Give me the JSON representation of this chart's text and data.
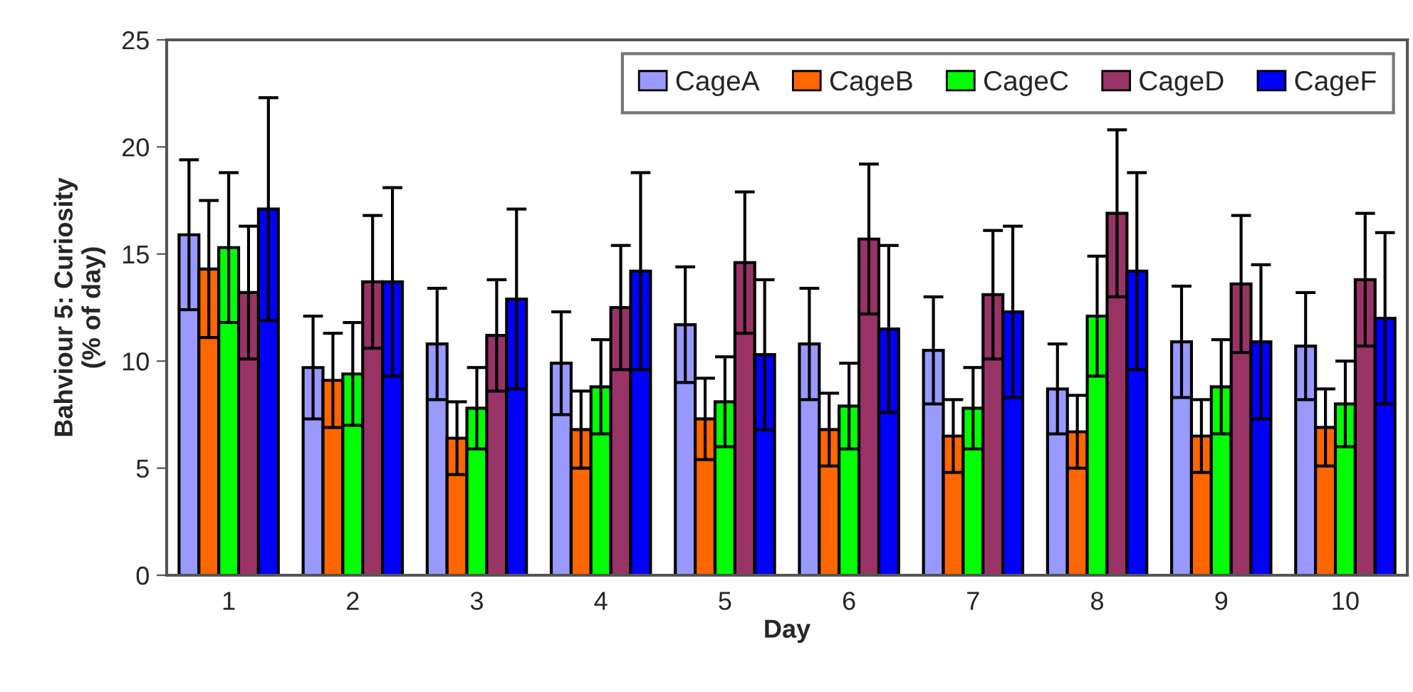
{
  "chart_data": {
    "type": "bar",
    "xlabel": "Day",
    "ylabel": "Bahviour 5: Curiosity\n(% of day)",
    "categories": [
      "1",
      "2",
      "3",
      "4",
      "5",
      "6",
      "7",
      "8",
      "9",
      "10"
    ],
    "series": [
      {
        "name": "CageA",
        "color": "#9999ff",
        "values": [
          15.9,
          9.7,
          10.8,
          9.9,
          11.7,
          10.8,
          10.5,
          8.7,
          10.9,
          10.7
        ],
        "errors": [
          3.5,
          2.4,
          2.6,
          2.4,
          2.7,
          2.6,
          2.5,
          2.1,
          2.6,
          2.5
        ]
      },
      {
        "name": "CageB",
        "color": "#ff6600",
        "values": [
          14.3,
          9.1,
          6.4,
          6.8,
          7.3,
          6.8,
          6.5,
          6.7,
          6.5,
          6.9
        ],
        "errors": [
          3.2,
          2.2,
          1.7,
          1.8,
          1.9,
          1.7,
          1.7,
          1.7,
          1.7,
          1.8
        ]
      },
      {
        "name": "CageC",
        "color": "#00ff00",
        "values": [
          15.3,
          9.4,
          7.8,
          8.8,
          8.1,
          7.9,
          7.8,
          12.1,
          8.8,
          8.0
        ],
        "errors": [
          3.5,
          2.4,
          1.9,
          2.2,
          2.1,
          2.0,
          1.9,
          2.8,
          2.2,
          2.0
        ]
      },
      {
        "name": "CageD",
        "color": "#993366",
        "values": [
          13.2,
          13.7,
          11.2,
          12.5,
          14.6,
          15.7,
          13.1,
          16.9,
          13.6,
          13.8
        ],
        "errors": [
          3.1,
          3.1,
          2.6,
          2.9,
          3.3,
          3.5,
          3.0,
          3.9,
          3.2,
          3.1
        ]
      },
      {
        "name": "CageF",
        "color": "#0000ff",
        "values": [
          17.1,
          13.7,
          12.9,
          14.2,
          10.3,
          11.5,
          12.3,
          14.2,
          10.9,
          12.0
        ],
        "errors": [
          5.2,
          4.4,
          4.2,
          4.6,
          3.5,
          3.9,
          4.0,
          4.6,
          3.6,
          4.0
        ]
      }
    ],
    "ylim": [
      0,
      25
    ],
    "yticks": [
      0,
      5,
      10,
      15,
      20,
      25
    ],
    "grid": false,
    "legend": "top right"
  }
}
